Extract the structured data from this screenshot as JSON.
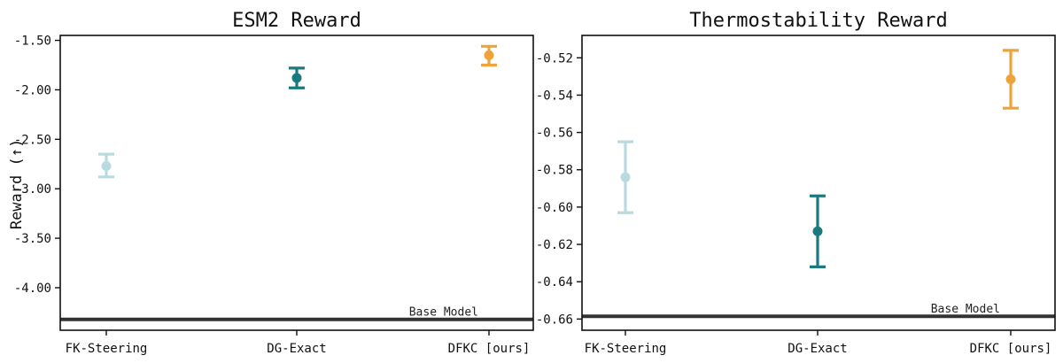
{
  "chart_data": [
    {
      "type": "scatter",
      "title": "ESM2 Reward",
      "ylabel": "Reward (↑)",
      "xlabel": "",
      "categories": [
        "FK-Steering",
        "DG-Exact",
        "DFKC [ours]"
      ],
      "points": [
        {
          "category": "FK-Steering",
          "y": -2.77,
          "low": -2.88,
          "high": -2.65,
          "color": "#b9dbe0"
        },
        {
          "category": "DG-Exact",
          "y": -1.88,
          "low": -1.98,
          "high": -1.78,
          "color": "#1b7a80"
        },
        {
          "category": "DFKC [ours]",
          "y": -1.65,
          "low": -1.75,
          "high": -1.56,
          "color": "#f0a23a"
        }
      ],
      "ylim": [
        -4.43,
        -1.45
      ],
      "yticks": [
        -1.5,
        -2.0,
        -2.5,
        -3.0,
        -3.5,
        -4.0
      ],
      "ytick_labels": [
        "-1.50",
        "-2.00",
        "-2.50",
        "-3.00",
        "-3.50",
        "-4.00"
      ],
      "baseline": {
        "label": "Base Model",
        "value": -4.32,
        "color": "#333333"
      },
      "grid": false,
      "legend": "none"
    },
    {
      "type": "scatter",
      "title": "Thermostability Reward",
      "ylabel": "",
      "xlabel": "",
      "categories": [
        "FK-Steering",
        "DG-Exact",
        "DFKC [ours]"
      ],
      "points": [
        {
          "category": "FK-Steering",
          "y": -0.584,
          "low": -0.603,
          "high": -0.565,
          "color": "#b9dbe0"
        },
        {
          "category": "DG-Exact",
          "y": -0.613,
          "low": -0.632,
          "high": -0.594,
          "color": "#1b7a80"
        },
        {
          "category": "DFKC [ours]",
          "y": -0.5315,
          "low": -0.547,
          "high": -0.516,
          "color": "#f0a23a"
        }
      ],
      "ylim": [
        -0.666,
        -0.508
      ],
      "yticks": [
        -0.52,
        -0.54,
        -0.56,
        -0.58,
        -0.6,
        -0.62,
        -0.64,
        -0.66
      ],
      "ytick_labels": [
        "-0.52",
        "-0.54",
        "-0.56",
        "-0.58",
        "-0.60",
        "-0.62",
        "-0.64",
        "-0.66"
      ],
      "baseline": {
        "label": "Base Model",
        "value": -0.6585,
        "color": "#333333"
      },
      "grid": false,
      "legend": "none"
    }
  ]
}
